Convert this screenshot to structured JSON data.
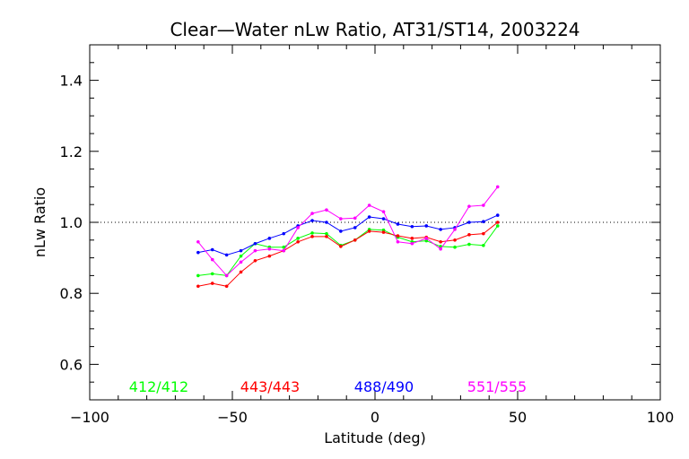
{
  "chart_data": {
    "type": "line",
    "title": "Clear—Water nLw Ratio, AT31/ST14, 2003224",
    "xlabel": "Latitude (deg)",
    "ylabel": "nLw Ratio",
    "xlim": [
      -100,
      100
    ],
    "ylim": [
      0.5,
      1.5
    ],
    "x_ticks": [
      -100,
      -50,
      0,
      50,
      100
    ],
    "x_tick_labels": [
      "−100",
      "−50",
      "0",
      "50",
      "100"
    ],
    "y_ticks": [
      0.6,
      0.8,
      1.0,
      1.2,
      1.4
    ],
    "y_tick_labels": [
      "0.6",
      "0.8",
      "1.0",
      "1.2",
      "1.4"
    ],
    "reference_line": {
      "y": 1.0,
      "style": "dotted",
      "color": "#000000"
    },
    "grid": false,
    "legend_placement": "bottom inside plot",
    "x": [
      -62,
      -57,
      -52,
      -47,
      -42,
      -37,
      -32,
      -27,
      -22,
      -17,
      -12,
      -7,
      -2,
      3,
      8,
      13,
      18,
      23,
      28,
      33,
      38,
      43
    ],
    "series": [
      {
        "name": "412/412",
        "color": "#00ff00",
        "values": [
          0.85,
          0.855,
          0.85,
          0.905,
          0.94,
          0.93,
          0.93,
          0.955,
          0.97,
          0.968,
          0.935,
          0.95,
          0.98,
          0.978,
          0.958,
          0.945,
          0.948,
          0.932,
          0.93,
          0.938,
          0.935,
          0.99
        ]
      },
      {
        "name": "443/443",
        "color": "#ff0000",
        "values": [
          0.82,
          0.828,
          0.82,
          0.86,
          0.892,
          0.905,
          0.92,
          0.945,
          0.96,
          0.96,
          0.932,
          0.95,
          0.975,
          0.972,
          0.962,
          0.955,
          0.958,
          0.945,
          0.95,
          0.965,
          0.968,
          1.0
        ]
      },
      {
        "name": "488/490",
        "color": "#0000ff",
        "values": [
          0.915,
          0.923,
          0.908,
          0.92,
          0.94,
          0.955,
          0.968,
          0.99,
          1.005,
          1.0,
          0.975,
          0.985,
          1.015,
          1.01,
          0.995,
          0.988,
          0.99,
          0.98,
          0.985,
          1.0,
          1.002,
          1.02
        ]
      },
      {
        "name": "551/555",
        "color": "#ff00ff",
        "values": [
          0.945,
          0.895,
          0.85,
          0.888,
          0.92,
          0.925,
          0.92,
          0.985,
          1.025,
          1.035,
          1.01,
          1.012,
          1.048,
          1.03,
          0.945,
          0.94,
          0.955,
          0.925,
          0.98,
          1.045,
          1.048,
          1.1
        ]
      }
    ]
  }
}
